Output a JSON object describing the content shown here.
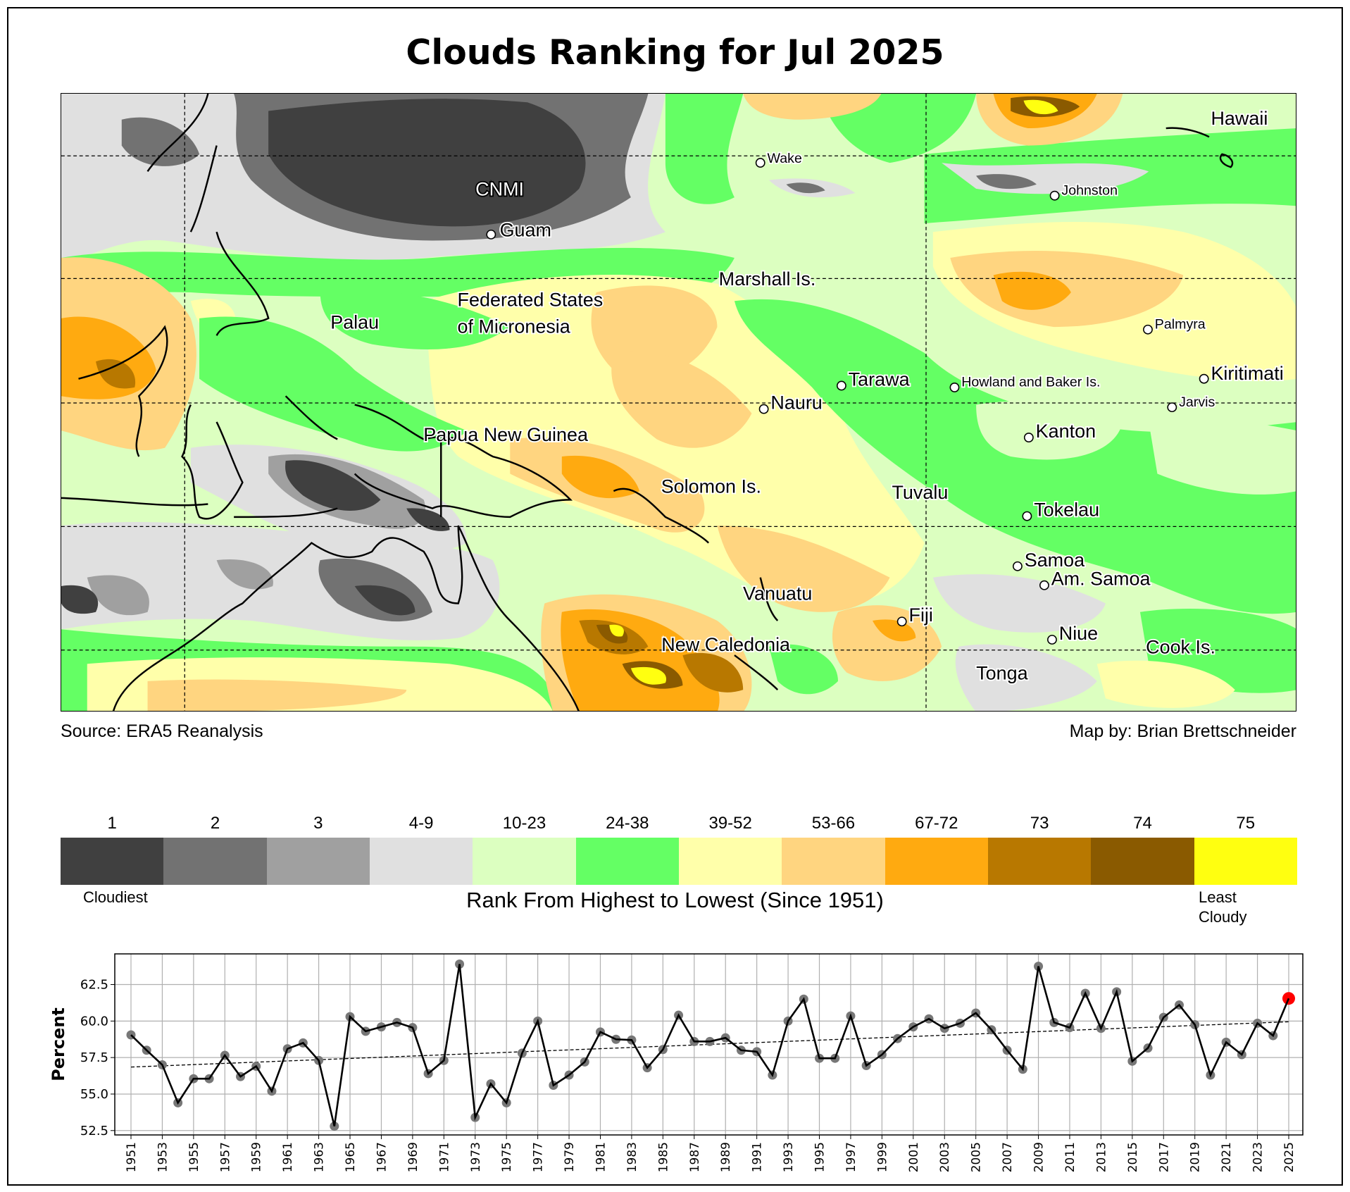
{
  "title": "Clouds Ranking for Jul 2025",
  "map": {
    "source": "Source: ERA5 Reanalysis",
    "credit": "Map by: Brian Brettschneider",
    "labels": {
      "wake": "Wake",
      "cnmi": "CNMI",
      "guam": "Guam",
      "johnston": "Johnston",
      "hawaii": "Hawaii",
      "marshall": "Marshall Is.",
      "palau": "Palau",
      "fsm1": "Federated States",
      "fsm2": "of Micronesia",
      "palmyra": "Palmyra",
      "kiritimati": "Kiritimati",
      "tarawa": "Tarawa",
      "howland": "Howland and Baker Is.",
      "nauru": "Nauru",
      "jarvis": "Jarvis",
      "kanton": "Kanton",
      "png": "Papua New Guinea",
      "solomon": "Solomon Is.",
      "tuvalu": "Tuvalu",
      "tokelau": "Tokelau",
      "samoa": "Samoa",
      "amsamoa": "Am. Samoa",
      "vanuatu": "Vanuatu",
      "fiji": "Fiji",
      "newcal": "New Caledonia",
      "niue": "Niue",
      "cook": "Cook Is.",
      "tonga": "Tonga"
    }
  },
  "legend": {
    "bins": [
      {
        "label": "1",
        "color": "#404040"
      },
      {
        "label": "2",
        "color": "#727272"
      },
      {
        "label": "3",
        "color": "#a0a0a0"
      },
      {
        "label": "4-9",
        "color": "#e0e0e0"
      },
      {
        "label": "10-23",
        "color": "#dcffc0"
      },
      {
        "label": "24-38",
        "color": "#64ff64"
      },
      {
        "label": "39-52",
        "color": "#ffffaa"
      },
      {
        "label": "53-66",
        "color": "#ffd580"
      },
      {
        "label": "67-72",
        "color": "#ffaa10"
      },
      {
        "label": "73",
        "color": "#b87800"
      },
      {
        "label": "74",
        "color": "#8a5a00"
      },
      {
        "label": "75",
        "color": "#ffff10"
      }
    ],
    "low_note": "Cloudiest",
    "high_note_1": "Least",
    "high_note_2": "Cloudy",
    "title": "Rank From Highest to Lowest (Since 1951)"
  },
  "chart_data": {
    "type": "line",
    "title": "",
    "xlabel": "",
    "ylabel": "Percent",
    "ylim": [
      52.2,
      64.6
    ],
    "yticks": [
      "52.5",
      "55.0",
      "57.5",
      "60.0",
      "62.5"
    ],
    "x_start": 1951,
    "x": [
      1951,
      1952,
      1953,
      1954,
      1955,
      1956,
      1957,
      1958,
      1959,
      1960,
      1961,
      1962,
      1963,
      1964,
      1965,
      1966,
      1967,
      1968,
      1969,
      1970,
      1971,
      1972,
      1973,
      1974,
      1975,
      1976,
      1977,
      1978,
      1979,
      1980,
      1981,
      1982,
      1983,
      1984,
      1985,
      1986,
      1987,
      1988,
      1989,
      1990,
      1991,
      1992,
      1993,
      1994,
      1995,
      1996,
      1997,
      1998,
      1999,
      2000,
      2001,
      2002,
      2003,
      2004,
      2005,
      2006,
      2007,
      2008,
      2009,
      2010,
      2011,
      2012,
      2013,
      2014,
      2015,
      2016,
      2017,
      2018,
      2019,
      2020,
      2021,
      2022,
      2023,
      2024,
      2025
    ],
    "values": [
      59.05,
      58.0,
      57.0,
      54.4,
      56.05,
      56.05,
      57.65,
      56.2,
      56.9,
      55.2,
      58.1,
      58.5,
      57.3,
      52.8,
      60.3,
      59.3,
      59.6,
      59.9,
      59.55,
      56.4,
      57.3,
      63.9,
      53.4,
      55.7,
      54.4,
      57.8,
      60.0,
      55.6,
      56.3,
      57.2,
      59.25,
      58.75,
      58.7,
      56.8,
      58.05,
      60.4,
      58.6,
      58.6,
      58.85,
      58.0,
      57.9,
      56.3,
      60.0,
      61.5,
      57.45,
      57.45,
      60.35,
      56.95,
      57.7,
      58.8,
      59.6,
      60.15,
      59.5,
      59.85,
      60.55,
      59.4,
      58.0,
      56.7,
      63.75,
      59.9,
      59.55,
      61.9,
      59.5,
      62.0,
      57.25,
      58.15,
      60.25,
      61.1,
      59.75,
      56.3,
      58.55,
      57.7,
      59.85,
      59.0,
      61.55
    ],
    "xticks": [
      "1951",
      "1953",
      "1955",
      "1957",
      "1959",
      "1961",
      "1963",
      "1965",
      "1967",
      "1969",
      "1971",
      "1973",
      "1975",
      "1977",
      "1979",
      "1981",
      "1983",
      "1985",
      "1987",
      "1989",
      "1991",
      "1993",
      "1995",
      "1997",
      "1999",
      "2001",
      "2003",
      "2005",
      "2007",
      "2009",
      "2011",
      "2013",
      "2015",
      "2017",
      "2019",
      "2021",
      "2023",
      "2025"
    ],
    "trend": {
      "start": 56.85,
      "end": 59.95
    },
    "highlight": {
      "year": 2025,
      "color": "#ff0000"
    },
    "point_color": "#777777",
    "line_color": "#000000",
    "grid": true
  }
}
